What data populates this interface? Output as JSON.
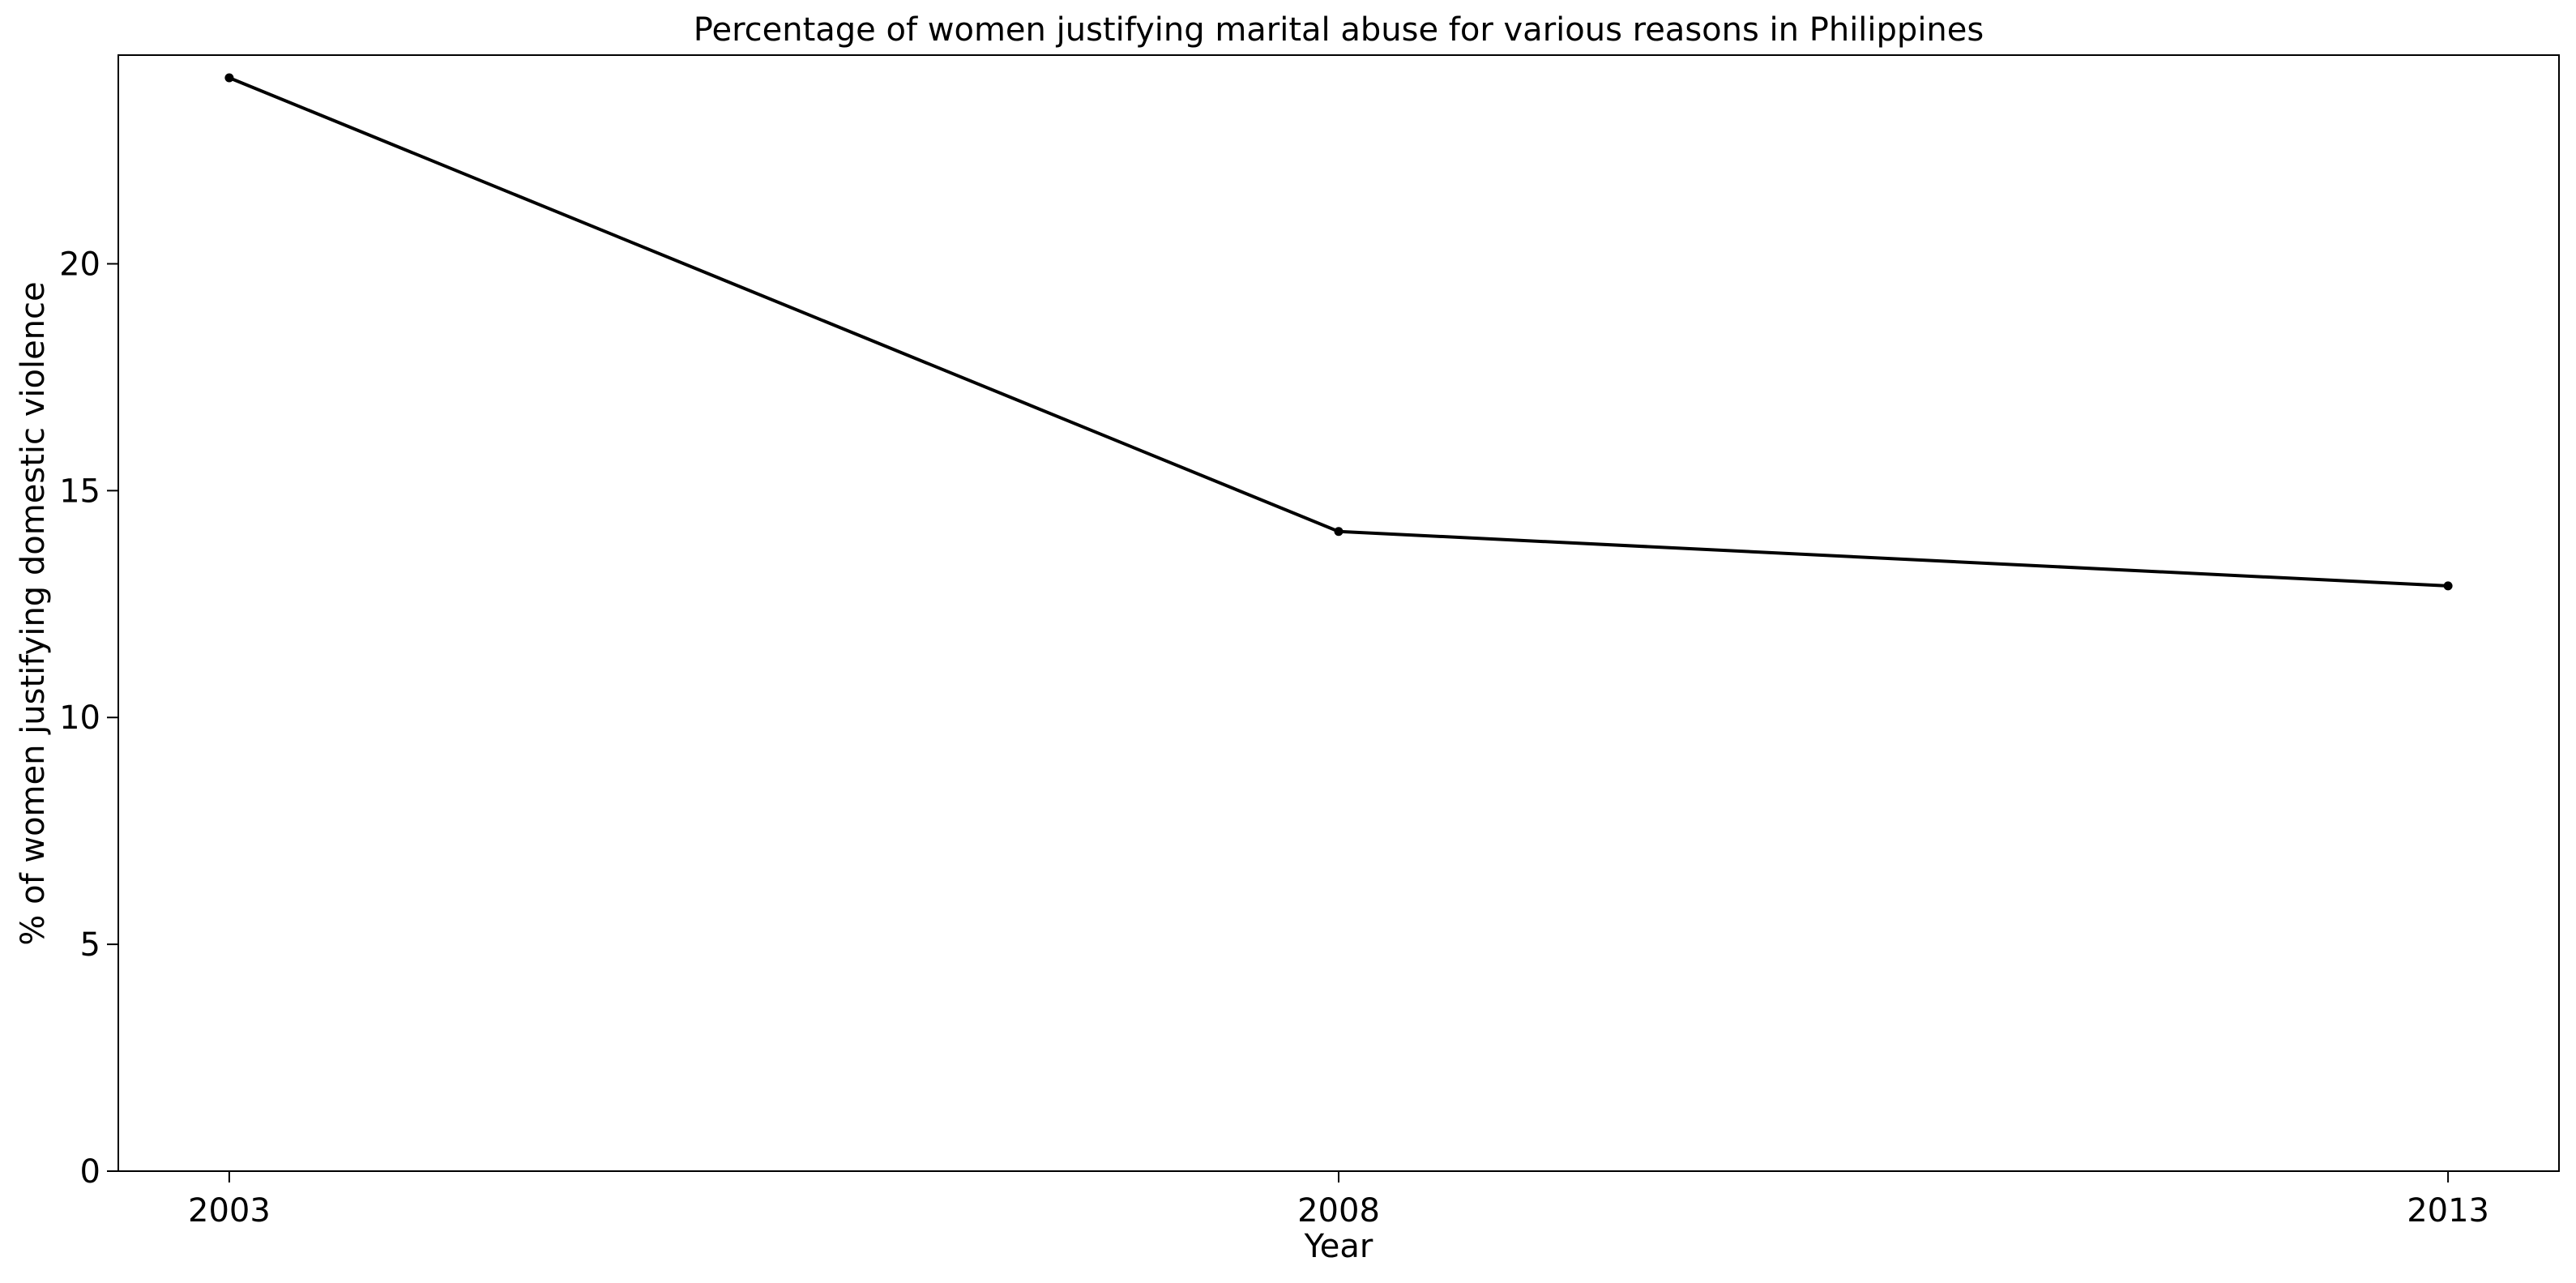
{
  "chart_data": {
    "type": "line",
    "title": "Percentage of women justifying marital abuse for various reasons in Philippines",
    "xlabel": "Year",
    "ylabel": "% of women justifying domestic violence",
    "x": [
      2003,
      2008,
      2013
    ],
    "x_tick_labels": [
      "2003",
      "2008",
      "2013"
    ],
    "y_ticks": [
      0,
      5,
      10,
      15,
      20
    ],
    "y_tick_labels": [
      "0",
      "5",
      "10",
      "15",
      "20"
    ],
    "xlim": [
      2002.5,
      2013.5
    ],
    "ylim": [
      0,
      24.6
    ],
    "grid": false,
    "series": [
      {
        "values": [
          24.1,
          14.1,
          12.9
        ],
        "color": "#000000",
        "marker": "dot"
      }
    ]
  }
}
